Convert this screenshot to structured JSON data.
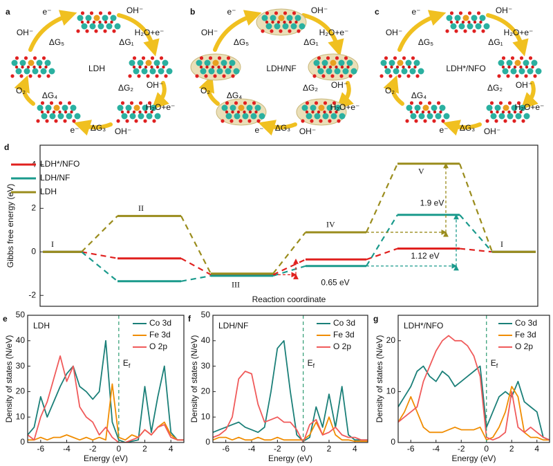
{
  "diagram": {
    "panels": [
      {
        "label": "a",
        "center": "LDH",
        "kind": "plain",
        "texts": [
          "OH⁻",
          "e⁻",
          "ΔG₅",
          "OH⁻",
          "H₂O+e⁻",
          "ΔG₁",
          "ΔG₂",
          "OH⁻",
          "H₂O+e⁻",
          "ΔG₃",
          "e⁻",
          "OH⁻",
          "ΔG₄",
          "O₂"
        ]
      },
      {
        "label": "b",
        "center": "LDH/NF",
        "kind": "shell",
        "texts": [
          "OH⁻",
          "e⁻",
          "ΔG₅",
          "OH⁻",
          "H₂O+e⁻",
          "ΔG₁",
          "ΔG₂",
          "OH⁻",
          "H₂O+e⁻",
          "ΔG₃",
          "e⁻",
          "OH⁻",
          "ΔG₄",
          "O₂"
        ]
      },
      {
        "label": "c",
        "center": "LDH*/NFO",
        "kind": "plain",
        "texts": [
          "OH⁻",
          "e⁻",
          "ΔG₅",
          "OH⁻",
          "H₂O+e⁻",
          "ΔG₁",
          "ΔG₂",
          "OH⁻",
          "H₂O+e⁻",
          "ΔG₃",
          "e⁻",
          "OH⁻",
          "ΔG₄",
          "O₂"
        ]
      }
    ]
  },
  "chart_data": [
    {
      "type": "energy_level",
      "panel": "d",
      "ylabel": "Gibbs free energy (eV)",
      "xlabel": "Reaction coordinate",
      "categories": [
        "I",
        "II",
        "III",
        "IV",
        "V",
        "I"
      ],
      "series": [
        {
          "name": "LDH*/NFO",
          "color": "#e0201e",
          "values": [
            0,
            -0.3,
            -1.05,
            -0.35,
            0.15,
            0
          ]
        },
        {
          "name": "LDH/NF",
          "color": "#1a9a8c",
          "values": [
            0,
            -1.35,
            -1.1,
            -0.65,
            1.7,
            0
          ]
        },
        {
          "name": "LDH",
          "color": "#9a8c1c",
          "values": [
            0,
            1.65,
            -1.0,
            0.9,
            4.05,
            0
          ]
        }
      ],
      "annotations": [
        {
          "text": "1.9 eV",
          "color": "#9a8c1c"
        },
        {
          "text": "1.12 eV",
          "color": "#1a9a8c"
        },
        {
          "text": "0.65 eV",
          "color": "#e0201e"
        }
      ],
      "ylim": [
        -2.5,
        4.9
      ],
      "yticks": [
        -2,
        0,
        2,
        4
      ]
    },
    {
      "type": "line",
      "panel": "e",
      "title": "LDH",
      "xlabel": "Energy (eV)",
      "ylabel": "Density of states (N/eV)",
      "ef_label": "E",
      "ef_sub": "f",
      "x": [
        -7,
        -6.5,
        -6,
        -5.5,
        -5,
        -4.5,
        -4,
        -3.5,
        -3,
        -2.5,
        -2,
        -1.5,
        -1,
        -0.5,
        0,
        0.5,
        1,
        1.5,
        2,
        2.5,
        3,
        3.5,
        4,
        4.5,
        5
      ],
      "series": [
        {
          "name": "Co 3d",
          "color": "#1a7f78",
          "values": [
            3,
            6,
            18,
            10,
            16,
            22,
            27,
            30,
            22,
            20,
            17,
            20,
            40,
            8,
            1,
            0,
            0.5,
            1,
            22,
            4,
            18,
            30,
            4,
            1,
            1
          ]
        },
        {
          "name": "Fe 3d",
          "color": "#f08c00",
          "values": [
            1,
            1,
            2,
            1,
            2,
            2,
            3,
            2,
            1,
            2,
            1,
            2,
            1,
            23,
            2,
            1,
            3,
            2,
            5,
            3,
            6,
            8,
            3,
            1,
            1
          ]
        },
        {
          "name": "O 2p",
          "color": "#f05a5a",
          "values": [
            3,
            1,
            10,
            16,
            25,
            34,
            24,
            30,
            14,
            10,
            8,
            3,
            6,
            2,
            0,
            0,
            1,
            2,
            5,
            3,
            6,
            7,
            2,
            1,
            1
          ]
        }
      ],
      "xlim": [
        -7,
        5
      ],
      "xticks": [
        -6,
        -4,
        -2,
        0,
        2,
        4
      ],
      "ylim": [
        0,
        50
      ],
      "yticks": [
        0,
        10,
        20,
        30,
        40,
        50
      ]
    },
    {
      "type": "line",
      "panel": "f",
      "title": "LDH/NF",
      "xlabel": "Energy (eV)",
      "ylabel": "Density of states (N/eV)",
      "ef_label": "E",
      "ef_sub": "f",
      "x": [
        -7,
        -6.5,
        -6,
        -5.5,
        -5,
        -4.5,
        -4,
        -3.5,
        -3,
        -2.5,
        -2,
        -1.5,
        -1,
        -0.5,
        0,
        0.5,
        1,
        1.5,
        2,
        2.5,
        3,
        3.5,
        4,
        4.5,
        5
      ],
      "series": [
        {
          "name": "Co 3d",
          "color": "#1a7f78",
          "values": [
            4,
            5,
            6,
            7,
            8,
            6,
            5,
            4,
            6,
            20,
            37,
            40,
            20,
            3,
            0.5,
            2,
            14,
            6,
            19,
            6,
            22,
            3,
            1,
            1,
            1
          ]
        },
        {
          "name": "Fe 3d",
          "color": "#f08c00",
          "values": [
            1,
            2,
            2,
            1,
            2,
            1,
            1,
            2,
            1,
            1,
            2,
            1,
            1,
            1,
            1,
            3,
            8,
            3,
            10,
            3,
            1,
            1,
            0.5,
            0.5,
            0.5
          ]
        },
        {
          "name": "O 2p",
          "color": "#f05a5a",
          "values": [
            2,
            3,
            5,
            10,
            25,
            28,
            27,
            15,
            8,
            9,
            10,
            8,
            8,
            5,
            0,
            7,
            9,
            3,
            4,
            6,
            3,
            2,
            2,
            1,
            1
          ]
        }
      ],
      "xlim": [
        -7,
        5
      ],
      "xticks": [
        -6,
        -4,
        -2,
        0,
        2,
        4
      ],
      "ylim": [
        0,
        50
      ],
      "yticks": [
        0,
        10,
        20,
        30,
        40,
        50
      ]
    },
    {
      "type": "line",
      "panel": "g",
      "title": "LDH*/NFO",
      "xlabel": "Energy (eV)",
      "ylabel": "Density of states (N/eV)",
      "ef_label": "E",
      "ef_sub": "f",
      "x": [
        -7,
        -6.5,
        -6,
        -5.5,
        -5,
        -4.5,
        -4,
        -3.5,
        -3,
        -2.5,
        -2,
        -1.5,
        -1,
        -0.5,
        0,
        0.5,
        1,
        1.5,
        2,
        2.5,
        3,
        3.5,
        4,
        4.5,
        5
      ],
      "series": [
        {
          "name": "Co 3d",
          "color": "#1a7f78",
          "values": [
            7,
            9,
            11,
            14,
            15,
            13,
            12,
            14,
            13,
            11,
            12,
            13,
            14,
            15,
            3,
            6,
            9,
            10,
            9,
            12,
            8,
            7,
            6,
            1,
            0.5
          ]
        },
        {
          "name": "Fe 3d",
          "color": "#f08c00",
          "values": [
            4,
            6,
            9,
            6,
            3,
            2,
            2,
            2,
            2.5,
            3,
            2.5,
            2.5,
            2.5,
            3,
            0.5,
            1,
            3,
            6,
            11,
            9,
            2,
            1,
            1,
            0.5,
            0.5
          ]
        },
        {
          "name": "O 2p",
          "color": "#f05a5a",
          "values": [
            4,
            5,
            6,
            7,
            12,
            15,
            18,
            20,
            21,
            20,
            20,
            19,
            17,
            13,
            1,
            0.5,
            1,
            2,
            10,
            3,
            2,
            3,
            2,
            1,
            0.5
          ]
        }
      ],
      "xlim": [
        -7,
        5
      ],
      "xticks": [
        -6,
        -4,
        -2,
        0,
        2,
        4
      ],
      "ylim": [
        0,
        25
      ],
      "yticks": [
        0,
        10,
        20
      ]
    }
  ]
}
